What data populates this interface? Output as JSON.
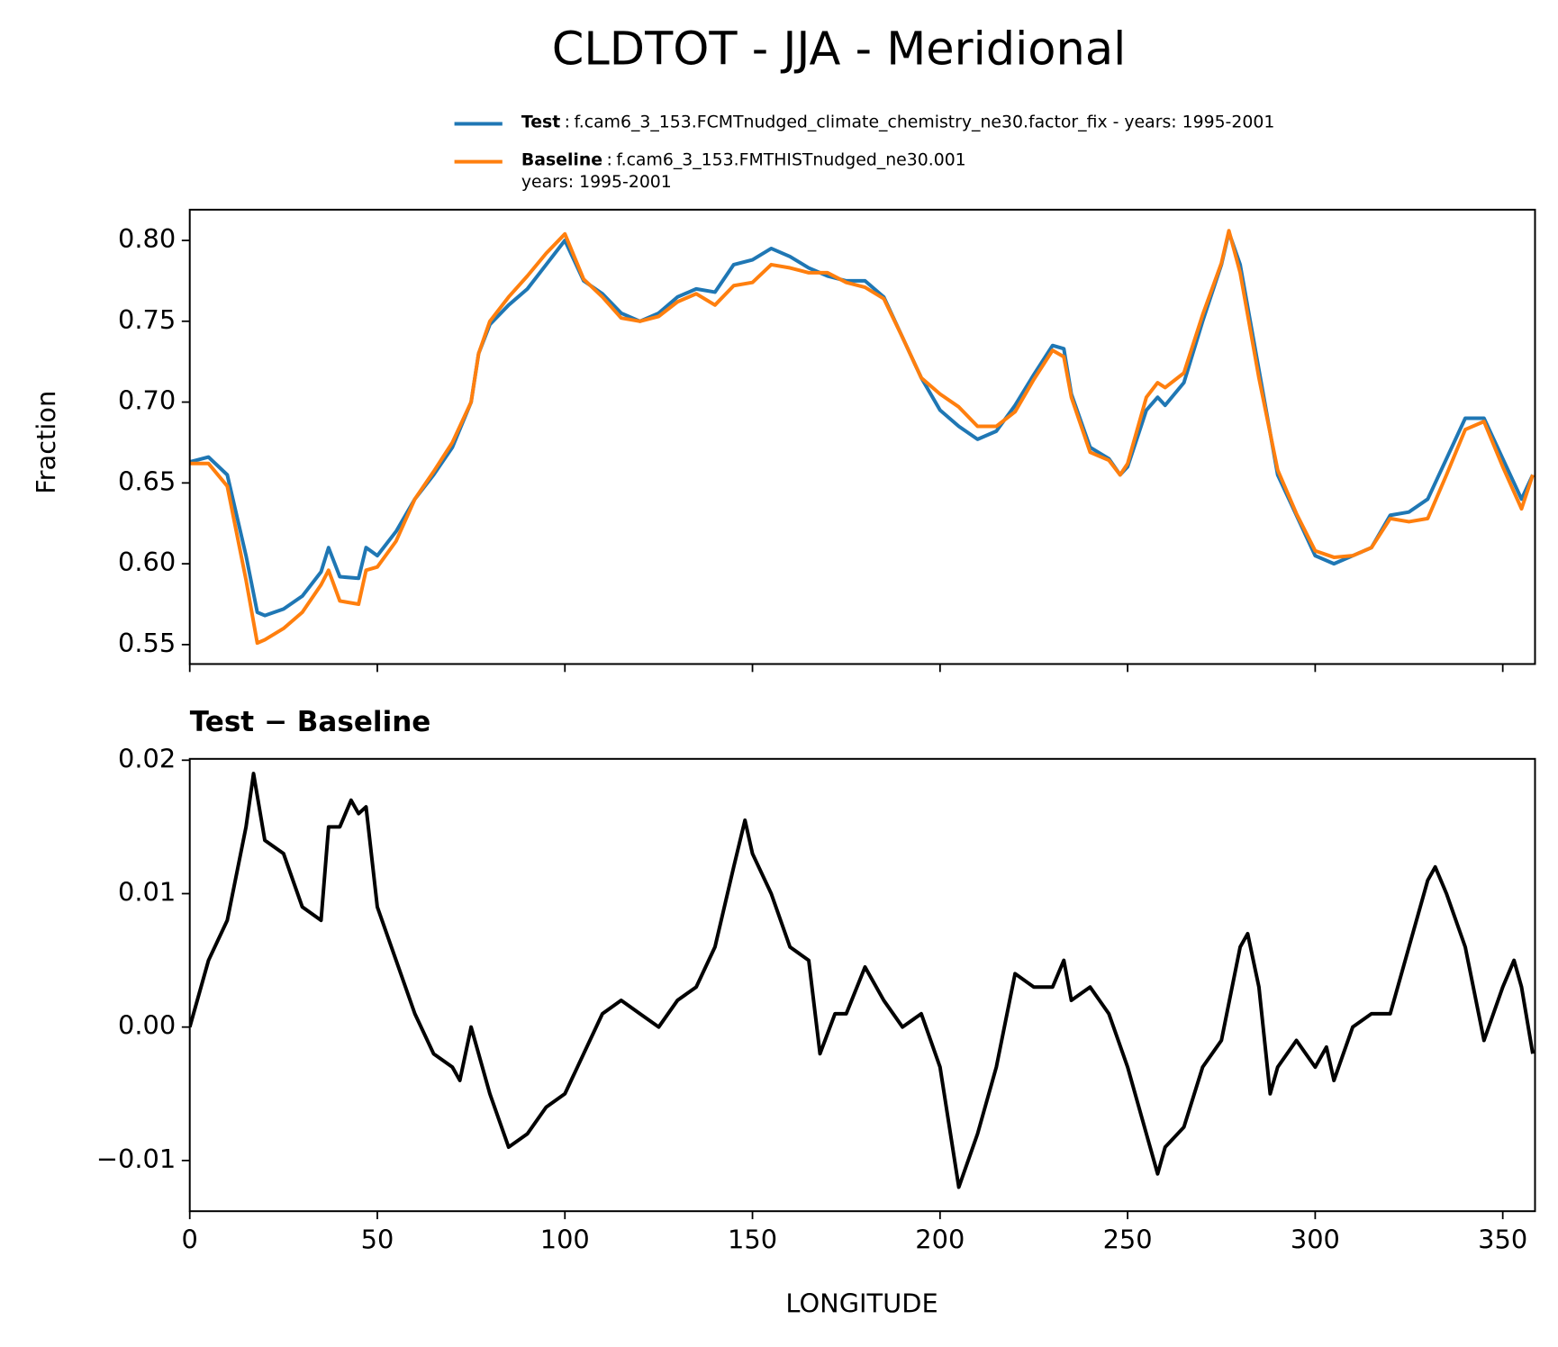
{
  "chart_data": [
    {
      "type": "line",
      "title": "CLDTOT - JJA - Meridional",
      "ylabel": "Fraction",
      "x": [
        0,
        5,
        10,
        15,
        18,
        20,
        25,
        30,
        35,
        37,
        40,
        45,
        47,
        50,
        55,
        60,
        65,
        70,
        75,
        77,
        80,
        85,
        90,
        95,
        100,
        105,
        110,
        115,
        120,
        125,
        130,
        135,
        140,
        145,
        150,
        155,
        160,
        165,
        170,
        175,
        180,
        185,
        190,
        195,
        200,
        205,
        210,
        215,
        220,
        225,
        230,
        233,
        235,
        240,
        245,
        248,
        250,
        255,
        258,
        260,
        265,
        270,
        275,
        277,
        280,
        285,
        290,
        295,
        300,
        305,
        310,
        315,
        320,
        325,
        330,
        335,
        340,
        345,
        350,
        355,
        358
      ],
      "series": [
        {
          "name": "Test",
          "label": [
            "f.cam6_3_153.FCMTnudged_climate_chemistry_ne30.factor_fix - years: 1995-2001"
          ],
          "color": "#1f77b4",
          "values": [
            0.663,
            0.666,
            0.655,
            0.605,
            0.57,
            0.568,
            0.572,
            0.58,
            0.595,
            0.61,
            0.592,
            0.591,
            0.61,
            0.605,
            0.62,
            0.64,
            0.655,
            0.672,
            0.7,
            0.73,
            0.748,
            0.76,
            0.77,
            0.785,
            0.8,
            0.775,
            0.767,
            0.755,
            0.75,
            0.755,
            0.765,
            0.77,
            0.768,
            0.785,
            0.788,
            0.795,
            0.79,
            0.783,
            0.778,
            0.775,
            0.775,
            0.765,
            0.74,
            0.715,
            0.695,
            0.685,
            0.677,
            0.682,
            0.698,
            0.717,
            0.735,
            0.733,
            0.705,
            0.672,
            0.665,
            0.655,
            0.66,
            0.695,
            0.703,
            0.698,
            0.712,
            0.75,
            0.785,
            0.805,
            0.785,
            0.72,
            0.655,
            0.63,
            0.605,
            0.6,
            0.605,
            0.61,
            0.63,
            0.632,
            0.64,
            0.665,
            0.69,
            0.69,
            0.665,
            0.64,
            0.655
          ]
        },
        {
          "name": "Baseline",
          "label": [
            "f.cam6_3_153.FMTHISTnudged_ne30.001",
            "years: 1995-2001"
          ],
          "color": "#ff7f0e",
          "values": [
            0.662,
            0.662,
            0.648,
            0.59,
            0.551,
            0.553,
            0.56,
            0.57,
            0.587,
            0.596,
            0.577,
            0.575,
            0.596,
            0.598,
            0.614,
            0.64,
            0.657,
            0.675,
            0.7,
            0.73,
            0.75,
            0.765,
            0.778,
            0.792,
            0.804,
            0.776,
            0.765,
            0.752,
            0.75,
            0.753,
            0.762,
            0.767,
            0.76,
            0.772,
            0.774,
            0.785,
            0.783,
            0.78,
            0.78,
            0.774,
            0.771,
            0.764,
            0.74,
            0.715,
            0.705,
            0.697,
            0.685,
            0.685,
            0.694,
            0.714,
            0.732,
            0.728,
            0.703,
            0.669,
            0.664,
            0.655,
            0.662,
            0.703,
            0.712,
            0.709,
            0.718,
            0.754,
            0.786,
            0.806,
            0.78,
            0.715,
            0.658,
            0.631,
            0.608,
            0.604,
            0.605,
            0.61,
            0.628,
            0.626,
            0.628,
            0.655,
            0.683,
            0.688,
            0.66,
            0.634,
            0.655
          ]
        }
      ],
      "xlim": [
        0,
        358.6
      ],
      "xticks": [
        0,
        50,
        100,
        150,
        200,
        250,
        300,
        350
      ],
      "ylim": [
        0.538,
        0.819
      ],
      "yticks": [
        0.55,
        {
          "value": 0.6,
          "label": "0.60"
        },
        0.65,
        {
          "value": 0.7,
          "label": "0.70"
        },
        0.75,
        {
          "value": 0.8,
          "label": "0.80"
        }
      ],
      "legend": "top"
    },
    {
      "type": "line",
      "title": "Test − Baseline",
      "xlabel": "LONGITUDE",
      "x": [
        0,
        5,
        10,
        15,
        17,
        20,
        25,
        30,
        35,
        37,
        40,
        43,
        45,
        47,
        50,
        55,
        60,
        65,
        70,
        72,
        75,
        80,
        85,
        90,
        95,
        100,
        105,
        110,
        115,
        120,
        125,
        130,
        135,
        140,
        145,
        148,
        150,
        155,
        160,
        165,
        168,
        172,
        175,
        180,
        185,
        190,
        195,
        200,
        205,
        210,
        215,
        220,
        225,
        230,
        233,
        235,
        240,
        245,
        250,
        255,
        258,
        260,
        265,
        270,
        275,
        280,
        282,
        285,
        288,
        290,
        295,
        300,
        303,
        305,
        310,
        315,
        320,
        325,
        330,
        332,
        335,
        340,
        345,
        350,
        353,
        355,
        358
      ],
      "series": [
        {
          "name": null,
          "color": "#000000",
          "values": [
            0.0,
            0.005,
            0.008,
            0.015,
            0.019,
            0.014,
            0.013,
            0.009,
            0.008,
            0.015,
            0.015,
            0.017,
            0.016,
            0.0165,
            0.009,
            0.005,
            0.001,
            -0.002,
            -0.003,
            -0.004,
            0.0,
            -0.005,
            -0.009,
            -0.008,
            -0.006,
            -0.005,
            -0.002,
            0.001,
            0.002,
            0.001,
            0.0,
            0.002,
            0.003,
            0.006,
            0.012,
            0.0155,
            0.013,
            0.01,
            0.006,
            0.005,
            -0.002,
            0.001,
            0.001,
            0.0045,
            0.002,
            0.0,
            0.001,
            -0.003,
            -0.012,
            -0.008,
            -0.003,
            0.004,
            0.003,
            0.003,
            0.005,
            0.002,
            0.003,
            0.001,
            -0.003,
            -0.008,
            -0.011,
            -0.009,
            -0.0075,
            -0.003,
            -0.001,
            0.006,
            0.007,
            0.003,
            -0.005,
            -0.003,
            -0.001,
            -0.003,
            -0.0015,
            -0.004,
            0.0,
            0.001,
            0.001,
            0.006,
            0.011,
            0.012,
            0.01,
            0.006,
            -0.001,
            0.003,
            0.005,
            0.003,
            -0.002
          ]
        }
      ],
      "xlim": [
        0,
        358.6
      ],
      "xticks": [
        0,
        50,
        100,
        150,
        200,
        250,
        300,
        350
      ],
      "ylim": [
        -0.0138,
        0.0201
      ],
      "yticks": [
        {
          "value": -0.01,
          "label": "−0.01"
        },
        {
          "value": 0,
          "label": "0.00"
        },
        0.01,
        0.02
      ]
    }
  ]
}
